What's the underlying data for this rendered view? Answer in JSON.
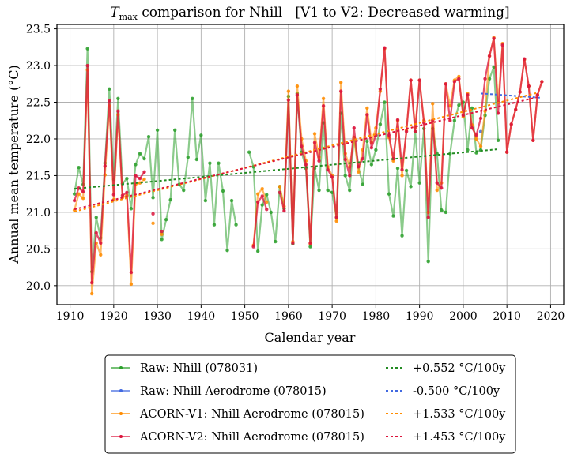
{
  "chart_data": {
    "type": "line",
    "title": {
      "var": "T",
      "sub": "max",
      "rest": " comparison for Nhill   [V1 to V2: Decreased warming]"
    },
    "xlabel": "Calendar year",
    "ylabel": "Annual mean temperature (°C)",
    "xlim": [
      1907,
      2023
    ],
    "ylim": [
      19.74,
      23.56
    ],
    "xticks": [
      1910,
      1920,
      1930,
      1940,
      1950,
      1960,
      1970,
      1980,
      1990,
      2000,
      2010,
      2020
    ],
    "yticks": [
      20.0,
      20.5,
      21.0,
      21.5,
      22.0,
      22.5,
      23.0,
      23.5
    ],
    "ytick_labels": [
      "20.0",
      "20.5",
      "21.0",
      "21.5",
      "22.0",
      "22.5",
      "23.0",
      "23.5"
    ],
    "grid": true,
    "legend_position": "bottom-center-outside",
    "series": [
      {
        "name": "Raw: Nhill (078031)",
        "color": "#2ca02c",
        "points": [
          [
            1911,
            21.25
          ],
          [
            1912,
            21.61
          ],
          [
            1913,
            21.38
          ],
          [
            1914,
            23.23
          ],
          [
            1915,
            20.19
          ],
          [
            1916,
            20.93
          ],
          [
            1917,
            20.65
          ],
          [
            1918,
            21.67
          ],
          [
            1919,
            22.68
          ],
          [
            1920,
            21.45
          ],
          [
            1921,
            22.55
          ],
          [
            1922,
            21.39
          ],
          [
            1923,
            21.46
          ],
          [
            1924,
            21.05
          ],
          [
            1925,
            21.65
          ],
          [
            1926,
            21.8
          ],
          [
            1927,
            21.73
          ],
          [
            1928,
            22.03
          ],
          [
            1929,
            21.2
          ],
          [
            1930,
            22.12
          ],
          [
            1931,
            20.63
          ],
          [
            1932,
            20.9
          ],
          [
            1933,
            21.17
          ],
          [
            1934,
            22.12
          ],
          [
            1935,
            21.38
          ],
          [
            1936,
            21.3
          ],
          [
            1937,
            21.75
          ],
          [
            1938,
            22.55
          ],
          [
            1939,
            21.72
          ],
          [
            1940,
            22.05
          ],
          [
            1941,
            21.16
          ],
          [
            1942,
            21.67
          ],
          [
            1943,
            20.83
          ],
          [
            1944,
            21.67
          ],
          [
            1945,
            21.29
          ],
          [
            1946,
            20.48
          ],
          [
            1947,
            21.16
          ],
          [
            1948,
            20.83
          ],
          [
            1951,
            21.82
          ],
          [
            1952,
            21.62
          ],
          [
            1953,
            20.47
          ],
          [
            1954,
            21.1
          ],
          [
            1955,
            21.24
          ],
          [
            1956,
            21.0
          ],
          [
            1957,
            20.6
          ],
          [
            1958,
            21.35
          ],
          [
            1959,
            21.05
          ],
          [
            1960,
            22.58
          ],
          [
            1961,
            20.57
          ],
          [
            1962,
            22.62
          ],
          [
            1963,
            21.82
          ],
          [
            1964,
            21.6
          ],
          [
            1965,
            20.53
          ],
          [
            1966,
            21.6
          ],
          [
            1967,
            21.3
          ],
          [
            1968,
            22.22
          ],
          [
            1969,
            21.3
          ],
          [
            1970,
            21.27
          ],
          [
            1971,
            20.93
          ],
          [
            1972,
            22.35
          ],
          [
            1973,
            21.5
          ],
          [
            1974,
            21.3
          ],
          [
            1975,
            22.02
          ],
          [
            1976,
            21.62
          ],
          [
            1977,
            21.38
          ],
          [
            1978,
            21.97
          ],
          [
            1979,
            21.65
          ],
          [
            1980,
            21.85
          ],
          [
            1981,
            22.2
          ],
          [
            1982,
            22.5
          ],
          [
            1983,
            21.25
          ],
          [
            1984,
            20.95
          ],
          [
            1985,
            21.6
          ],
          [
            1986,
            20.68
          ],
          [
            1987,
            21.57
          ],
          [
            1988,
            21.35
          ],
          [
            1989,
            22.1
          ],
          [
            1990,
            21.4
          ],
          [
            1991,
            22.14
          ],
          [
            1992,
            20.33
          ],
          [
            1993,
            22.14
          ],
          [
            1994,
            21.8
          ],
          [
            1995,
            21.03
          ],
          [
            1996,
            21.0
          ],
          [
            1997,
            21.8
          ],
          [
            1998,
            22.25
          ],
          [
            1999,
            22.46
          ],
          [
            2000,
            22.5
          ],
          [
            2001,
            21.85
          ],
          [
            2002,
            22.42
          ],
          [
            2003,
            21.81
          ],
          [
            2004,
            21.85
          ],
          [
            2005,
            22.32
          ],
          [
            2006,
            22.82
          ],
          [
            2007,
            22.98
          ],
          [
            2008,
            21.98
          ]
        ]
      },
      {
        "name": "Raw: Nhill Aerodrome (078015)",
        "color": "#4169e1",
        "points": [
          [
            2004,
            22.1
          ]
        ]
      },
      {
        "name": "ACORN-V1: Nhill Aerodrome (078015)",
        "color": "#ff8c00",
        "points": [
          [
            1911,
            21.03
          ],
          [
            1912,
            21.25
          ],
          [
            1913,
            21.19
          ],
          [
            1914,
            22.94
          ],
          [
            1915,
            19.89
          ],
          [
            1916,
            20.58
          ],
          [
            1917,
            20.42
          ],
          [
            1918,
            21.51
          ],
          [
            1919,
            22.45
          ],
          [
            1920,
            21.17
          ],
          [
            1921,
            22.33
          ],
          [
            1922,
            21.2
          ],
          [
            1923,
            21.23
          ],
          [
            1924,
            20.02
          ],
          [
            1925,
            21.38
          ],
          [
            1926,
            21.4
          ],
          [
            1927,
            21.45
          ],
          [
            1929,
            20.85
          ],
          [
            1931,
            20.7
          ],
          [
            1952,
            20.55
          ],
          [
            1953,
            21.25
          ],
          [
            1954,
            21.32
          ],
          [
            1955,
            21.14
          ],
          [
            1958,
            21.35
          ],
          [
            1959,
            21.08
          ],
          [
            1960,
            22.65
          ],
          [
            1961,
            20.6
          ],
          [
            1962,
            22.72
          ],
          [
            1963,
            22.0
          ],
          [
            1964,
            21.7
          ],
          [
            1965,
            20.57
          ],
          [
            1966,
            22.07
          ],
          [
            1967,
            21.75
          ],
          [
            1968,
            22.55
          ],
          [
            1969,
            21.62
          ],
          [
            1970,
            21.5
          ],
          [
            1971,
            20.88
          ],
          [
            1972,
            22.77
          ],
          [
            1973,
            21.8
          ],
          [
            1974,
            21.62
          ],
          [
            1975,
            22.02
          ],
          [
            1976,
            21.55
          ],
          [
            1977,
            21.85
          ],
          [
            1978,
            22.42
          ],
          [
            1979,
            21.95
          ],
          [
            1980,
            22.15
          ],
          [
            1981,
            22.65
          ],
          [
            1982,
            23.23
          ],
          [
            1983,
            22.02
          ],
          [
            1984,
            21.7
          ],
          [
            1985,
            22.25
          ],
          [
            1986,
            21.5
          ],
          [
            1987,
            22.12
          ],
          [
            1988,
            22.8
          ],
          [
            1989,
            22.15
          ],
          [
            1990,
            22.8
          ],
          [
            1991,
            22.25
          ],
          [
            1992,
            21.0
          ],
          [
            1993,
            22.48
          ],
          [
            1994,
            21.3
          ],
          [
            1995,
            21.4
          ],
          [
            1996,
            22.75
          ],
          [
            1997,
            22.45
          ],
          [
            1998,
            22.8
          ],
          [
            1999,
            22.85
          ],
          [
            2000,
            22.3
          ],
          [
            2001,
            22.62
          ],
          [
            2002,
            22.19
          ],
          [
            2003,
            22.0
          ],
          [
            2004,
            21.9
          ],
          [
            2005,
            22.38
          ],
          [
            2006,
            23.13
          ],
          [
            2007,
            23.38
          ],
          [
            2008,
            22.5
          ],
          [
            2009,
            23.3
          ],
          [
            2010,
            21.82
          ],
          [
            2011,
            22.2
          ],
          [
            2012,
            22.4
          ],
          [
            2013,
            22.64
          ],
          [
            2014,
            23.08
          ],
          [
            2015,
            22.72
          ],
          [
            2016,
            21.98
          ],
          [
            2017,
            22.6
          ],
          [
            2018,
            22.78
          ]
        ]
      },
      {
        "name": "ACORN-V2: Nhill Aerodrome (078015)",
        "color": "#dc143c",
        "points": [
          [
            1911,
            21.16
          ],
          [
            1912,
            21.33
          ],
          [
            1913,
            21.28
          ],
          [
            1914,
            23.0
          ],
          [
            1915,
            20.04
          ],
          [
            1916,
            20.72
          ],
          [
            1917,
            20.58
          ],
          [
            1918,
            21.63
          ],
          [
            1919,
            22.52
          ],
          [
            1920,
            21.24
          ],
          [
            1921,
            22.38
          ],
          [
            1922,
            21.23
          ],
          [
            1923,
            21.27
          ],
          [
            1924,
            20.18
          ],
          [
            1925,
            21.5
          ],
          [
            1926,
            21.46
          ],
          [
            1927,
            21.55
          ],
          [
            1929,
            20.98
          ],
          [
            1931,
            20.74
          ],
          [
            1952,
            20.53
          ],
          [
            1953,
            21.14
          ],
          [
            1954,
            21.22
          ],
          [
            1955,
            21.04
          ],
          [
            1958,
            21.27
          ],
          [
            1959,
            21.02
          ],
          [
            1960,
            22.53
          ],
          [
            1961,
            20.58
          ],
          [
            1962,
            22.6
          ],
          [
            1963,
            21.9
          ],
          [
            1964,
            21.65
          ],
          [
            1965,
            20.58
          ],
          [
            1966,
            21.95
          ],
          [
            1967,
            21.7
          ],
          [
            1968,
            22.45
          ],
          [
            1969,
            21.58
          ],
          [
            1970,
            21.48
          ],
          [
            1971,
            20.93
          ],
          [
            1972,
            22.65
          ],
          [
            1973,
            21.72
          ],
          [
            1974,
            21.5
          ],
          [
            1975,
            22.15
          ],
          [
            1976,
            21.62
          ],
          [
            1977,
            21.73
          ],
          [
            1978,
            22.33
          ],
          [
            1979,
            21.88
          ],
          [
            1980,
            22.05
          ],
          [
            1981,
            22.68
          ],
          [
            1982,
            23.24
          ],
          [
            1983,
            22.05
          ],
          [
            1984,
            21.73
          ],
          [
            1985,
            22.26
          ],
          [
            1986,
            21.58
          ],
          [
            1987,
            22.1
          ],
          [
            1988,
            22.8
          ],
          [
            1989,
            22.1
          ],
          [
            1990,
            22.8
          ],
          [
            1991,
            22.22
          ],
          [
            1992,
            20.93
          ],
          [
            1993,
            22.25
          ],
          [
            1994,
            21.4
          ],
          [
            1995,
            21.33
          ],
          [
            1996,
            22.75
          ],
          [
            1997,
            22.25
          ],
          [
            1998,
            22.78
          ],
          [
            1999,
            22.82
          ],
          [
            2000,
            22.32
          ],
          [
            2001,
            22.6
          ],
          [
            2002,
            22.15
          ],
          [
            2003,
            22.05
          ],
          [
            2004,
            22.28
          ],
          [
            2005,
            22.82
          ],
          [
            2006,
            23.13
          ],
          [
            2007,
            23.37
          ],
          [
            2008,
            22.35
          ],
          [
            2009,
            23.28
          ],
          [
            2010,
            21.82
          ],
          [
            2011,
            22.2
          ],
          [
            2012,
            22.4
          ],
          [
            2013,
            22.64
          ],
          [
            2014,
            23.09
          ],
          [
            2015,
            22.72
          ],
          [
            2016,
            21.98
          ],
          [
            2017,
            22.6
          ],
          [
            2018,
            22.78
          ]
        ]
      }
    ],
    "trends": [
      {
        "label": "+0.552 °C/100y",
        "color": "#228b22",
        "x": [
          1911,
          2008
        ],
        "y": [
          21.32,
          21.86
        ]
      },
      {
        "label": "-0.500 °C/100y",
        "color": "#4169e1",
        "x": [
          2004,
          2018
        ],
        "y": [
          22.62,
          22.56
        ]
      },
      {
        "label": "+1.533 °C/100y",
        "color": "#ff8c00",
        "x": [
          1911,
          2017
        ],
        "y": [
          21.01,
          22.63
        ]
      },
      {
        "label": "+1.453 °C/100y",
        "color": "#dc143c",
        "x": [
          1911,
          2017
        ],
        "y": [
          21.04,
          22.57
        ]
      }
    ]
  },
  "legend": {
    "entries": [
      {
        "label": "Raw: Nhill (078031)",
        "color": "#2ca02c"
      },
      {
        "label": "Raw: Nhill Aerodrome (078015)",
        "color": "#4169e1"
      },
      {
        "label": "ACORN-V1: Nhill Aerodrome (078015)",
        "color": "#ff8c00"
      },
      {
        "label": "ACORN-V2: Nhill Aerodrome (078015)",
        "color": "#dc143c"
      }
    ],
    "trend_entries": [
      {
        "label": "+0.552 °C/100y",
        "color": "#228b22"
      },
      {
        "label": "-0.500 °C/100y",
        "color": "#4169e1"
      },
      {
        "label": "+1.533 °C/100y",
        "color": "#ff8c00"
      },
      {
        "label": "+1.453 °C/100y",
        "color": "#dc143c"
      }
    ]
  }
}
